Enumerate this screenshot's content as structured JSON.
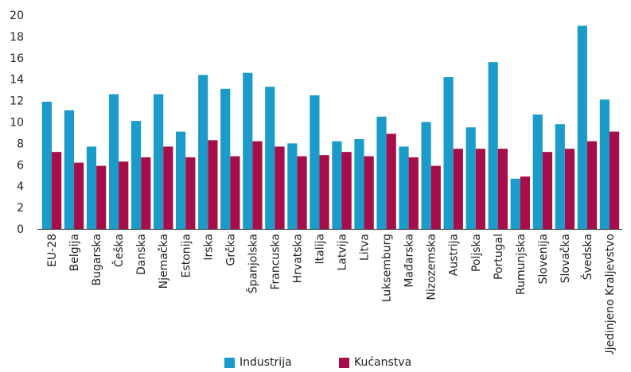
{
  "chart_data": {
    "type": "bar",
    "categories": [
      "EU-28",
      "Belgija",
      "Bugarska",
      "Češka",
      "Danska",
      "Njemačka",
      "Estonija",
      "Irska",
      "Grčka",
      "Španjolska",
      "Francuska",
      "Hrvatska",
      "Italija",
      "Latvija",
      "Litva",
      "Luksemburg",
      "Mađarska",
      "Nizozemska",
      "Austrija",
      "Poljska",
      "Portugal",
      "Rumunjska",
      "Slovenija",
      "Slovačka",
      "Švedska",
      "Ujedinjeno Kraljevstvo"
    ],
    "series": [
      {
        "name": "Industrija",
        "color": "#1a9bc9",
        "values": [
          11.9,
          11.1,
          7.7,
          12.6,
          10.1,
          12.6,
          9.1,
          14.4,
          13.1,
          14.6,
          13.3,
          8.0,
          12.5,
          8.2,
          8.4,
          10.5,
          7.7,
          10.0,
          14.2,
          9.5,
          15.6,
          4.7,
          10.7,
          9.8,
          19.0,
          12.1
        ]
      },
      {
        "name": "Kućanstva",
        "color": "#a50e4a",
        "values": [
          7.2,
          6.2,
          5.9,
          6.3,
          6.7,
          7.7,
          6.7,
          8.3,
          6.8,
          8.2,
          7.7,
          6.8,
          6.9,
          7.2,
          6.8,
          8.9,
          6.7,
          5.9,
          7.5,
          7.5,
          7.5,
          4.9,
          7.2,
          7.5,
          8.2,
          9.1
        ]
      }
    ],
    "ylim": [
      0,
      20
    ],
    "yticks": [
      0,
      2,
      4,
      6,
      8,
      10,
      12,
      14,
      16,
      18,
      20
    ],
    "legend_position": "bottom",
    "grid": false
  }
}
